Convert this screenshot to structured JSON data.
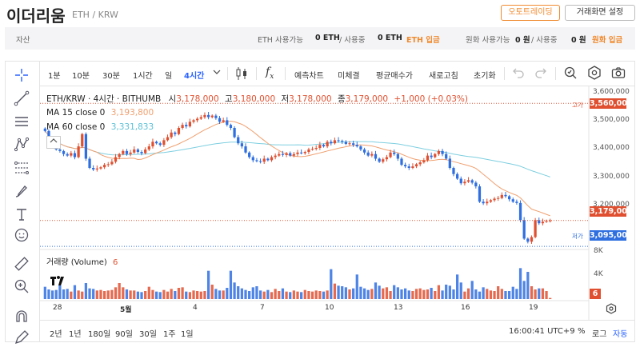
{
  "header": {
    "coin_name": "이더리움",
    "pair": "ETH / KRW",
    "auto_trade_label": "오토트레이딩",
    "settings_label": "거래화면 설정"
  },
  "assetbar": {
    "title": "자산",
    "eth_available_label": "ETH 사용가능",
    "eth_available": "0 ETH",
    "eth_in_use_label": "/ 사용중",
    "eth_in_use": "0 ETH",
    "eth_deposit": "ETH 입금",
    "krw_available_label": "원화 사용가능",
    "krw_available": "0 원",
    "krw_in_use_label": "/ 사용중",
    "krw_in_use": "0 원",
    "krw_deposit": "원화 입금"
  },
  "toolbar": {
    "intervals": [
      "1분",
      "10분",
      "30분",
      "1시간",
      "일",
      "4시간"
    ],
    "active_interval": "4시간",
    "fx_label": "f",
    "fx_sub": "x",
    "forecast": "예측차트",
    "unfilled": "미체결",
    "avg_price": "평균매수가",
    "refresh": "새로고침",
    "reset": "초기화"
  },
  "legend": {
    "symbol": "ETH/KRW · 4시간 · BITHUMB",
    "o_label": "시",
    "o": "3,178,000",
    "h_label": "고",
    "h": "3,180,000",
    "l_label": "저",
    "l": "3,178,000",
    "c_label": "종",
    "c": "3,179,000",
    "change": "+1,000 (+0.03%)",
    "ma15_label": "MA 15 close 0",
    "ma15": "3,193,800",
    "ma60_label": "MA 60 close 0",
    "ma60": "3,331,833",
    "volume_label": "거래량 (Volume)",
    "volume_value": "6"
  },
  "axis": {
    "price_ticks": [
      "3,600,000",
      "3,500,000",
      "3,400,000",
      "3,300,000",
      "3,200,000"
    ],
    "high_tag": "고가",
    "low_tag": "저가",
    "high_price": "3,560,000",
    "current_price": "3,179,000",
    "low_price": "3,095,000",
    "volume_ticks": [
      "8K",
      "4K"
    ],
    "volume_current": "6",
    "date_labels": [
      "28",
      "5월",
      "4",
      "7",
      "10",
      "13",
      "16",
      "19"
    ]
  },
  "bottombar": {
    "ranges": [
      "2년",
      "1년",
      "180일",
      "90일",
      "30일",
      "1주",
      "1일"
    ],
    "time": "16:00:41 UTC+9",
    "percent": "%",
    "log": "로그",
    "auto": "자동"
  },
  "colors": {
    "up": "#e05030",
    "down": "#2f6fe0",
    "ma15": "#f0a070",
    "ma60": "#7ecfe0",
    "accent": "#f08a2e",
    "active": "#2962ff"
  },
  "chart_data": {
    "type": "candlestick",
    "interval": "4시간",
    "ylim": [
      3090000,
      3610000
    ],
    "high": 3560000,
    "low": 3095000,
    "last": 3179000,
    "closes": [
      3470000,
      3440000,
      3420000,
      3410000,
      3405000,
      3395000,
      3390000,
      3398000,
      3385000,
      3420000,
      3460000,
      3380000,
      3350000,
      3345000,
      3348000,
      3352000,
      3360000,
      3362000,
      3370000,
      3385000,
      3395000,
      3405000,
      3395000,
      3400000,
      3410000,
      3402000,
      3398000,
      3410000,
      3420000,
      3435000,
      3430000,
      3425000,
      3440000,
      3450000,
      3465000,
      3460000,
      3480000,
      3490000,
      3485000,
      3500000,
      3505000,
      3510000,
      3515000,
      3522000,
      3515000,
      3520000,
      3512000,
      3500000,
      3505000,
      3490000,
      3480000,
      3450000,
      3430000,
      3420000,
      3400000,
      3385000,
      3375000,
      3372000,
      3370000,
      3380000,
      3375000,
      3385000,
      3390000,
      3395000,
      3392000,
      3398000,
      3390000,
      3395000,
      3400000,
      3398000,
      3402000,
      3410000,
      3412000,
      3415000,
      3425000,
      3420000,
      3435000,
      3430000,
      3440000,
      3438000,
      3435000,
      3428000,
      3430000,
      3425000,
      3420000,
      3410000,
      3400000,
      3390000,
      3395000,
      3380000,
      3370000,
      3378000,
      3385000,
      3400000,
      3395000,
      3380000,
      3360000,
      3355000,
      3350000,
      3355000,
      3362000,
      3368000,
      3375000,
      3390000,
      3385000,
      3395000,
      3405000,
      3395000,
      3380000,
      3350000,
      3330000,
      3315000,
      3300000,
      3305000,
      3310000,
      3302000,
      3290000,
      3240000,
      3235000,
      3240000,
      3245000,
      3250000,
      3252000,
      3262000,
      3258000,
      3248000,
      3240000,
      3236000,
      3180000,
      3120000,
      3110000,
      3125000,
      3180000,
      3170000,
      3175000,
      3178000,
      3179000
    ],
    "volumes": [
      2.3,
      1.8,
      1.6,
      1.7,
      2.6,
      1.8,
      1.9,
      1.4,
      2.6,
      1.6,
      1.4,
      3.0,
      2.0,
      1.9,
      1.6,
      1.7,
      1.5,
      1.6,
      1.7,
      2.2,
      3.0,
      2.2,
      1.8,
      1.6,
      1.6,
      1.4,
      1.3,
      1.5,
      2.3,
      1.7,
      1.4,
      1.3,
      1.7,
      1.4,
      1.9,
      1.5,
      2.1,
      2.2,
      1.4,
      1.3,
      1.6,
      1.5,
      1.4,
      1.5,
      5.3,
      2.7,
      1.9,
      1.6,
      1.6,
      2.1,
      5.3,
      3.1,
      2.4,
      2.0,
      1.7,
      1.5,
      2.2,
      2.4,
      1.6,
      1.4,
      1.7,
      1.3,
      1.9,
      1.5,
      2.0,
      1.4,
      1.3,
      1.6,
      1.4,
      1.3,
      1.7,
      1.5,
      1.4,
      1.6,
      1.5,
      1.4,
      1.6,
      5.6,
      2.9,
      2.5,
      2.4,
      2.2,
      1.8,
      2.0,
      4.6,
      2.3,
      2.0,
      1.7,
      1.9,
      3.1,
      2.5,
      2.0,
      2.2,
      1.5,
      2.6,
      2.2,
      1.8,
      2.0,
      1.6,
      1.5,
      1.9,
      2.0,
      1.7,
      1.8,
      2.1,
      1.5,
      2.6,
      1.6,
      2.7,
      2.5,
      1.8,
      4.6,
      3.1,
      1.4,
      2.0,
      3.4,
      1.8,
      1.4,
      2.2,
      1.9,
      1.6,
      1.5,
      2.4,
      1.9,
      1.5,
      1.5,
      2.3,
      1.9,
      5.8,
      3.4,
      5.1,
      2.4,
      1.8,
      2.0,
      2.0,
      1.5,
      0.2
    ],
    "volume_ylim": [
      0,
      9
    ],
    "ma15_end": 3193800,
    "ma60_end": 3331833
  }
}
